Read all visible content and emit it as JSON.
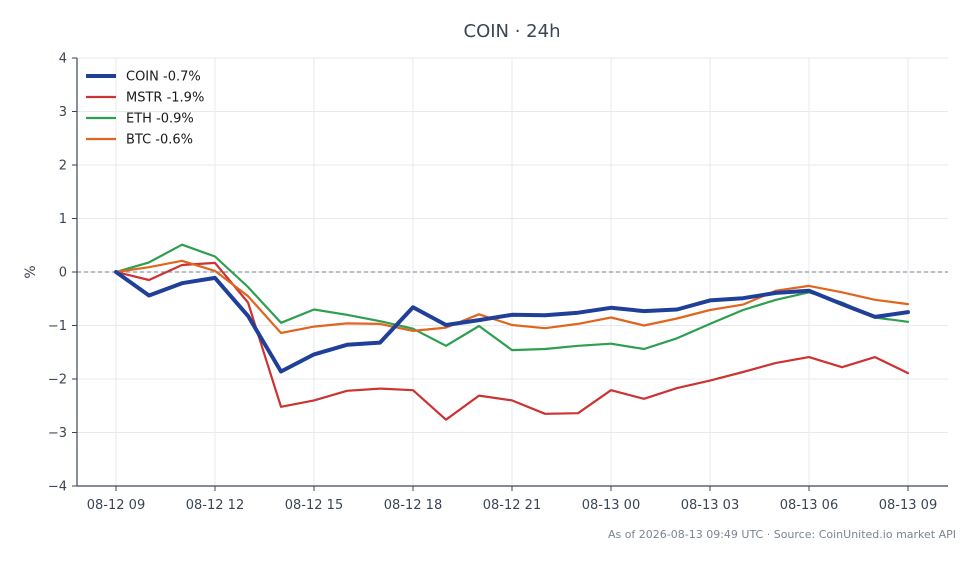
{
  "chart_data": {
    "type": "line",
    "title": "COIN · 24h",
    "xlabel": "",
    "ylabel": "%",
    "ylim": [
      -4,
      4
    ],
    "yticks": [
      -4,
      -3,
      -2,
      -1,
      0,
      1,
      2,
      3,
      4
    ],
    "x": [
      "08-12 09",
      "08-12 10",
      "08-12 11",
      "08-12 12",
      "08-12 13",
      "08-12 14",
      "08-12 15",
      "08-12 16",
      "08-12 17",
      "08-12 18",
      "08-12 19",
      "08-12 20",
      "08-12 21",
      "08-12 22",
      "08-12 23",
      "08-13 00",
      "08-13 01",
      "08-13 02",
      "08-13 03",
      "08-13 04",
      "08-13 05",
      "08-13 06",
      "08-13 07",
      "08-13 08",
      "08-13 09"
    ],
    "xticks": [
      "08-12 09",
      "08-12 12",
      "08-12 15",
      "08-12 18",
      "08-12 21",
      "08-13 00",
      "08-13 03",
      "08-13 06",
      "08-13 09"
    ],
    "zero_line": true,
    "grid": true,
    "legend_position": "top-left",
    "series": [
      {
        "name": "COIN -0.7%",
        "color": "#1f3f99",
        "width": 4,
        "values": [
          0,
          -0.44,
          -0.21,
          -0.11,
          -0.82,
          -1.86,
          -1.54,
          -1.36,
          -1.32,
          -0.66,
          -0.99,
          -0.9,
          -0.8,
          -0.81,
          -0.76,
          -0.67,
          -0.73,
          -0.7,
          -0.53,
          -0.49,
          -0.39,
          -0.35,
          -0.6,
          -0.84,
          -0.75
        ]
      },
      {
        "name": "MSTR -1.9%",
        "color": "#cc3333",
        "width": 2.2,
        "values": [
          0,
          -0.15,
          0.13,
          0.17,
          -0.57,
          -2.52,
          -2.4,
          -2.22,
          -2.18,
          -2.21,
          -2.76,
          -2.31,
          -2.4,
          -2.65,
          -2.64,
          -2.21,
          -2.37,
          -2.17,
          -2.03,
          -1.87,
          -1.7,
          -1.59,
          -1.78,
          -1.59,
          -1.89
        ]
      },
      {
        "name": "ETH -0.9%",
        "color": "#2e9e4f",
        "width": 2.2,
        "values": [
          0,
          0.18,
          0.51,
          0.29,
          -0.28,
          -0.95,
          -0.7,
          -0.8,
          -0.92,
          -1.06,
          -1.38,
          -1.01,
          -1.46,
          -1.44,
          -1.38,
          -1.34,
          -1.44,
          -1.24,
          -0.97,
          -0.71,
          -0.52,
          -0.38,
          -0.57,
          -0.85,
          -0.93
        ]
      },
      {
        "name": "BTC -0.6%",
        "color": "#e0661f",
        "width": 2.2,
        "values": [
          0,
          0.09,
          0.21,
          0.02,
          -0.45,
          -1.14,
          -1.02,
          -0.96,
          -0.97,
          -1.1,
          -1.04,
          -0.79,
          -0.99,
          -1.05,
          -0.97,
          -0.85,
          -1.0,
          -0.87,
          -0.71,
          -0.61,
          -0.35,
          -0.26,
          -0.38,
          -0.52,
          -0.6
        ]
      }
    ]
  },
  "footer": "As of 2026-08-13 09:49 UTC · Source: CoinUnited.io market API"
}
